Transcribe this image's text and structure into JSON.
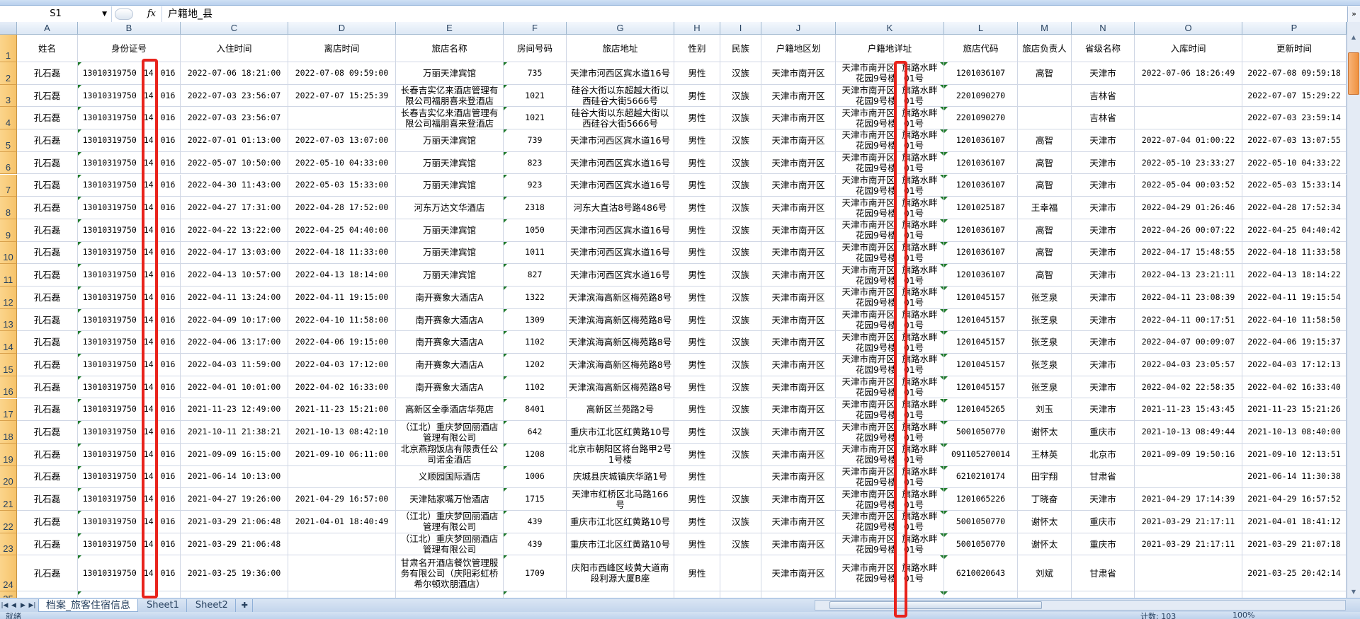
{
  "formula_bar": {
    "name_box": "S1",
    "fx_label": "fx",
    "formula": "户籍地_县"
  },
  "columns": [
    "A",
    "B",
    "C",
    "D",
    "E",
    "F",
    "G",
    "H",
    "I",
    "J",
    "K",
    "L",
    "M",
    "N",
    "O",
    "P"
  ],
  "headers": [
    "姓名",
    "身份证号",
    "入住时间",
    "离店时间",
    "旅店名称",
    "房间号码",
    "旅店地址",
    "性别",
    "民族",
    "户籍地区划",
    "户籍地详址",
    "旅店代码",
    "旅店负责人",
    "省级名称",
    "入库时间",
    "更新时间"
  ],
  "id_segments": [
    "13010319750",
    "14",
    "016"
  ],
  "address_segments": [
    [
      "天津市南开区",
      "旗路水畔"
    ],
    [
      "花园9号楼",
      "01号"
    ]
  ],
  "rows": [
    [
      "2",
      "孔石磊",
      "2022-07-06 18:21:00",
      "2022-07-08 09:59:00",
      "万丽天津宾馆",
      "735",
      "天津市河西区宾水道16号",
      "男性",
      "汉族",
      "天津市南开区",
      "1201036107",
      "高智",
      "天津市",
      "2022-07-06 18:26:49",
      "2022-07-08 09:59:18"
    ],
    [
      "3",
      "孔石磊",
      "2022-07-03 23:56:07",
      "2022-07-07 15:25:39",
      "长春吉实亿来酒店管理有限公司福朋喜来登酒店",
      "1021",
      "硅谷大街以东超越大街以西硅谷大街5666号",
      "男性",
      "汉族",
      "天津市南开区",
      "2201090270",
      "",
      "吉林省",
      "",
      "2022-07-07 15:29:22"
    ],
    [
      "4",
      "孔石磊",
      "2022-07-03 23:56:07",
      "",
      "长春吉实亿来酒店管理有限公司福朋喜来登酒店",
      "1021",
      "硅谷大街以东超越大街以西硅谷大街5666号",
      "男性",
      "汉族",
      "天津市南开区",
      "2201090270",
      "",
      "吉林省",
      "",
      "2022-07-03 23:59:14"
    ],
    [
      "5",
      "孔石磊",
      "2022-07-01 01:13:00",
      "2022-07-03 13:07:00",
      "万丽天津宾馆",
      "739",
      "天津市河西区宾水道16号",
      "男性",
      "汉族",
      "天津市南开区",
      "1201036107",
      "高智",
      "天津市",
      "2022-07-04 01:00:22",
      "2022-07-03 13:07:55"
    ],
    [
      "6",
      "孔石磊",
      "2022-05-07 10:50:00",
      "2022-05-10 04:33:00",
      "万丽天津宾馆",
      "823",
      "天津市河西区宾水道16号",
      "男性",
      "汉族",
      "天津市南开区",
      "1201036107",
      "高智",
      "天津市",
      "2022-05-10 23:33:27",
      "2022-05-10 04:33:22"
    ],
    [
      "7",
      "孔石磊",
      "2022-04-30 11:43:00",
      "2022-05-03 15:33:00",
      "万丽天津宾馆",
      "923",
      "天津市河西区宾水道16号",
      "男性",
      "汉族",
      "天津市南开区",
      "1201036107",
      "高智",
      "天津市",
      "2022-05-04 00:03:52",
      "2022-05-03 15:33:14"
    ],
    [
      "8",
      "孔石磊",
      "2022-04-27 17:31:00",
      "2022-04-28 17:52:00",
      "河东万达文华酒店",
      "2318",
      "河东大直沽8号路486号",
      "男性",
      "汉族",
      "天津市南开区",
      "1201025187",
      "王幸福",
      "天津市",
      "2022-04-29 01:26:46",
      "2022-04-28 17:52:34"
    ],
    [
      "9",
      "孔石磊",
      "2022-04-22 13:22:00",
      "2022-04-25 04:40:00",
      "万丽天津宾馆",
      "1050",
      "天津市河西区宾水道16号",
      "男性",
      "汉族",
      "天津市南开区",
      "1201036107",
      "高智",
      "天津市",
      "2022-04-26 00:07:22",
      "2022-04-25 04:40:42"
    ],
    [
      "10",
      "孔石磊",
      "2022-04-17 13:03:00",
      "2022-04-18 11:33:00",
      "万丽天津宾馆",
      "1011",
      "天津市河西区宾水道16号",
      "男性",
      "汉族",
      "天津市南开区",
      "1201036107",
      "高智",
      "天津市",
      "2022-04-17 15:48:55",
      "2022-04-18 11:33:58"
    ],
    [
      "11",
      "孔石磊",
      "2022-04-13 10:57:00",
      "2022-04-13 18:14:00",
      "万丽天津宾馆",
      "827",
      "天津市河西区宾水道16号",
      "男性",
      "汉族",
      "天津市南开区",
      "1201036107",
      "高智",
      "天津市",
      "2022-04-13 23:21:11",
      "2022-04-13 18:14:22"
    ],
    [
      "12",
      "孔石磊",
      "2022-04-11 13:24:00",
      "2022-04-11 19:15:00",
      "南开赛象大酒店A",
      "1322",
      "天津滨海高新区梅苑路8号",
      "男性",
      "汉族",
      "天津市南开区",
      "1201045157",
      "张芝泉",
      "天津市",
      "2022-04-11 23:08:39",
      "2022-04-11 19:15:54"
    ],
    [
      "13",
      "孔石磊",
      "2022-04-09 10:17:00",
      "2022-04-10 11:58:00",
      "南开赛象大酒店A",
      "1309",
      "天津滨海高新区梅苑路8号",
      "男性",
      "汉族",
      "天津市南开区",
      "1201045157",
      "张芝泉",
      "天津市",
      "2022-04-11 00:17:51",
      "2022-04-10 11:58:50"
    ],
    [
      "14",
      "孔石磊",
      "2022-04-06 13:17:00",
      "2022-04-06 19:15:00",
      "南开赛象大酒店A",
      "1102",
      "天津滨海高新区梅苑路8号",
      "男性",
      "汉族",
      "天津市南开区",
      "1201045157",
      "张芝泉",
      "天津市",
      "2022-04-07 00:09:07",
      "2022-04-06 19:15:37"
    ],
    [
      "15",
      "孔石磊",
      "2022-04-03 11:59:00",
      "2022-04-03 17:12:00",
      "南开赛象大酒店A",
      "1202",
      "天津滨海高新区梅苑路8号",
      "男性",
      "汉族",
      "天津市南开区",
      "1201045157",
      "张芝泉",
      "天津市",
      "2022-04-03 23:05:57",
      "2022-04-03 17:12:13"
    ],
    [
      "16",
      "孔石磊",
      "2022-04-01 10:01:00",
      "2022-04-02 16:33:00",
      "南开赛象大酒店A",
      "1102",
      "天津滨海高新区梅苑路8号",
      "男性",
      "汉族",
      "天津市南开区",
      "1201045157",
      "张芝泉",
      "天津市",
      "2022-04-02 22:58:35",
      "2022-04-02 16:33:40"
    ],
    [
      "17",
      "孔石磊",
      "2021-11-23 12:49:00",
      "2021-11-23 15:21:00",
      "高新区全季酒店华苑店",
      "8401",
      "高新区兰苑路2号",
      "男性",
      "汉族",
      "天津市南开区",
      "1201045265",
      "刘玉",
      "天津市",
      "2021-11-23 15:43:45",
      "2021-11-23 15:21:26"
    ],
    [
      "18",
      "孔石磊",
      "2021-10-11 21:38:21",
      "2021-10-13 08:42:10",
      "（江北）重庆梦回丽酒店管理有限公司",
      "642",
      "重庆市江北区红黄路10号",
      "男性",
      "汉族",
      "天津市南开区",
      "5001050770",
      "谢怀太",
      "重庆市",
      "2021-10-13 08:49:44",
      "2021-10-13 08:40:00"
    ],
    [
      "19",
      "孔石磊",
      "2021-09-09 16:15:00",
      "2021-09-10 06:11:00",
      "北京燕翔饭店有限责任公司诺金酒店",
      "1208",
      "北京市朝阳区将台路甲2号1号楼",
      "男性",
      "汉族",
      "天津市南开区",
      "091105270014",
      "王林英",
      "北京市",
      "2021-09-09 19:50:16",
      "2021-09-10 12:13:51"
    ],
    [
      "20",
      "孔石磊",
      "2021-06-14 10:13:00",
      "",
      "义顺园国际酒店",
      "1006",
      "庆城县庆城镇庆华路1号",
      "男性",
      "",
      "天津市南开区",
      "6210210174",
      "田宇翔",
      "甘肃省",
      "",
      "2021-06-14 11:30:38"
    ],
    [
      "21",
      "孔石磊",
      "2021-04-27 19:26:00",
      "2021-04-29 16:57:00",
      "天津陆家嘴万怡酒店",
      "1715",
      "天津市红桥区北马路166号",
      "男性",
      "汉族",
      "天津市南开区",
      "1201065226",
      "丁晓奋",
      "天津市",
      "2021-04-29 17:14:39",
      "2021-04-29 16:57:52"
    ],
    [
      "22",
      "孔石磊",
      "2021-03-29 21:06:48",
      "2021-04-01 18:40:49",
      "（江北）重庆梦回丽酒店管理有限公司",
      "439",
      "重庆市江北区红黄路10号",
      "男性",
      "汉族",
      "天津市南开区",
      "5001050770",
      "谢怀太",
      "重庆市",
      "2021-03-29 21:17:11",
      "2021-04-01 18:41:12"
    ],
    [
      "23",
      "孔石磊",
      "2021-03-29 21:06:48",
      "",
      "（江北）重庆梦回丽酒店管理有限公司",
      "439",
      "重庆市江北区红黄路10号",
      "男性",
      "汉族",
      "天津市南开区",
      "5001050770",
      "谢怀太",
      "重庆市",
      "2021-03-29 21:17:11",
      "2021-03-29 21:07:18"
    ],
    [
      "24",
      "孔石磊",
      "2021-03-25 19:36:00",
      "",
      "甘肃名开酒店餐饮管理服务有限公司（庆阳彩虹桥希尔顿欢朋酒店）",
      "1709",
      "庆阳市西峰区岐黄大道南段利源大厦B座",
      "男性",
      "",
      "天津市南开区",
      "6210020643",
      "刘斌",
      "甘肃省",
      "",
      "2021-03-25 20:42:14"
    ]
  ],
  "sheet_tabs": [
    {
      "label": "档案_旅客住宿信息",
      "active": true
    },
    {
      "label": "Sheet1"
    },
    {
      "label": "Sheet2"
    }
  ],
  "status_bar": {
    "ready": "就绪",
    "count": "计数: 103",
    "zoom": "100%"
  },
  "colors": {
    "highlight_box": "#e8231c",
    "row_header": "#f6c36b",
    "error_marker": "#1f7a2a"
  }
}
